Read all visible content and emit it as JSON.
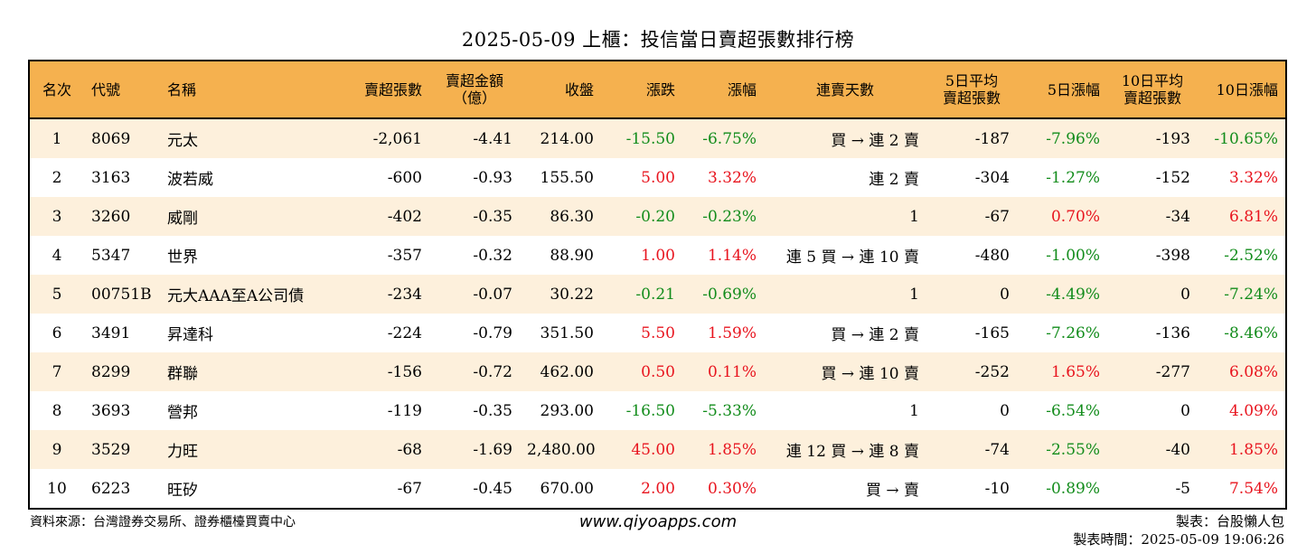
{
  "title": "2025-05-09 上櫃：投信當日賣超張數排行榜",
  "headers": {
    "rank": "名次",
    "code": "代號",
    "name": "名稱",
    "sell_lots": "賣超張數",
    "sell_amount_l1": "賣超金額",
    "sell_amount_l2": "（億）",
    "close": "收盤",
    "change": "漲跌",
    "change_pct": "漲幅",
    "streak": "連賣天數",
    "avg5_l1": "5日平均",
    "avg5_l2": "賣超張數",
    "chg5": "5日漲幅",
    "avg10_l1": "10日平均",
    "avg10_l2": "賣超張數",
    "chg10": "10日漲幅"
  },
  "rows": [
    {
      "rank": "1",
      "code": "8069",
      "name": "元太",
      "sell_lots": "-2,061",
      "sell_amount": "-4.41",
      "close": "214.00",
      "change": "-15.50",
      "change_pct": "-6.75%",
      "streak": "買 → 連 2 賣",
      "avg5": "-187",
      "chg5": "-7.96%",
      "avg10": "-193",
      "chg10": "-10.65%"
    },
    {
      "rank": "2",
      "code": "3163",
      "name": "波若威",
      "sell_lots": "-600",
      "sell_amount": "-0.93",
      "close": "155.50",
      "change": "5.00",
      "change_pct": "3.32%",
      "streak": "連 2 賣",
      "avg5": "-304",
      "chg5": "-1.27%",
      "avg10": "-152",
      "chg10": "3.32%"
    },
    {
      "rank": "3",
      "code": "3260",
      "name": "威剛",
      "sell_lots": "-402",
      "sell_amount": "-0.35",
      "close": "86.30",
      "change": "-0.20",
      "change_pct": "-0.23%",
      "streak": "1",
      "avg5": "-67",
      "chg5": "0.70%",
      "avg10": "-34",
      "chg10": "6.81%"
    },
    {
      "rank": "4",
      "code": "5347",
      "name": "世界",
      "sell_lots": "-357",
      "sell_amount": "-0.32",
      "close": "88.90",
      "change": "1.00",
      "change_pct": "1.14%",
      "streak": "連 5 買 → 連 10 賣",
      "avg5": "-480",
      "chg5": "-1.00%",
      "avg10": "-398",
      "chg10": "-2.52%"
    },
    {
      "rank": "5",
      "code": "00751B",
      "name": "元大AAA至A公司債",
      "sell_lots": "-234",
      "sell_amount": "-0.07",
      "close": "30.22",
      "change": "-0.21",
      "change_pct": "-0.69%",
      "streak": "1",
      "avg5": "0",
      "chg5": "-4.49%",
      "avg10": "0",
      "chg10": "-7.24%"
    },
    {
      "rank": "6",
      "code": "3491",
      "name": "昇達科",
      "sell_lots": "-224",
      "sell_amount": "-0.79",
      "close": "351.50",
      "change": "5.50",
      "change_pct": "1.59%",
      "streak": "買 → 連 2 賣",
      "avg5": "-165",
      "chg5": "-7.26%",
      "avg10": "-136",
      "chg10": "-8.46%"
    },
    {
      "rank": "7",
      "code": "8299",
      "name": "群聯",
      "sell_lots": "-156",
      "sell_amount": "-0.72",
      "close": "462.00",
      "change": "0.50",
      "change_pct": "0.11%",
      "streak": "買 → 連 10 賣",
      "avg5": "-252",
      "chg5": "1.65%",
      "avg10": "-277",
      "chg10": "6.08%"
    },
    {
      "rank": "8",
      "code": "3693",
      "name": "營邦",
      "sell_lots": "-119",
      "sell_amount": "-0.35",
      "close": "293.00",
      "change": "-16.50",
      "change_pct": "-5.33%",
      "streak": "1",
      "avg5": "0",
      "chg5": "-6.54%",
      "avg10": "0",
      "chg10": "4.09%"
    },
    {
      "rank": "9",
      "code": "3529",
      "name": "力旺",
      "sell_lots": "-68",
      "sell_amount": "-1.69",
      "close": "2,480.00",
      "change": "45.00",
      "change_pct": "1.85%",
      "streak": "連 12 買 → 連 8 賣",
      "avg5": "-74",
      "chg5": "-2.55%",
      "avg10": "-40",
      "chg10": "1.85%"
    },
    {
      "rank": "10",
      "code": "6223",
      "name": "旺矽",
      "sell_lots": "-67",
      "sell_amount": "-0.45",
      "close": "670.00",
      "change": "2.00",
      "change_pct": "0.30%",
      "streak": "買 → 賣",
      "avg5": "-10",
      "chg5": "-0.89%",
      "avg10": "-5",
      "chg10": "7.54%"
    }
  ],
  "colors": {
    "header_bg": "#f5b14f",
    "row_alt_bg": "#fdf0dc",
    "up": "#e8141e",
    "down": "#128c1b"
  },
  "footer": {
    "source": "資料來源：台灣證券交易所、證券櫃檯買賣中心",
    "site": "www.qiyoapps.com",
    "maker": "製表：台股懶人包",
    "made_time": "製表時間：2025-05-09 19:06:26"
  }
}
